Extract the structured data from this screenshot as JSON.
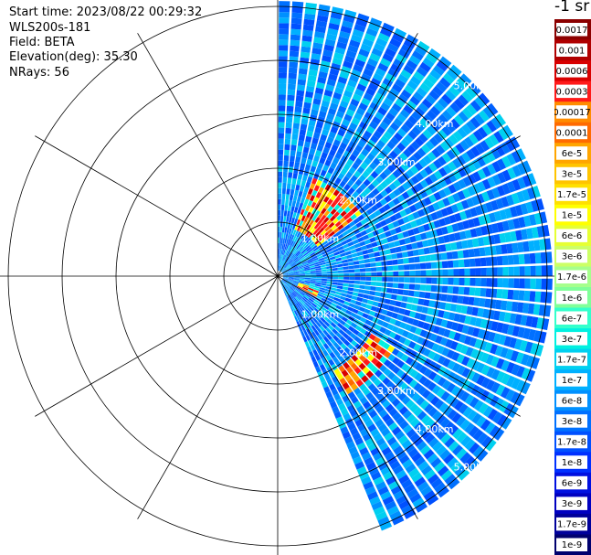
{
  "header": {
    "start_time": "Start time: 2023/08/22 00:29:32",
    "instrument": "WLS200s-181",
    "field": "Field: BETA",
    "elevation": "Elevation(deg): 35.30",
    "nrays": "NRays: 56"
  },
  "colorbar": {
    "units_label": "-1 sr",
    "labels": [
      "0.0017",
      "0.001",
      "0.0006",
      "0.0003",
      "0.00017",
      "0.0001",
      "6e-5",
      "3e-5",
      "1.7e-5",
      "1e-5",
      "6e-6",
      "3e-6",
      "1.7e-6",
      "1e-6",
      "6e-7",
      "3e-7",
      "1.7e-7",
      "1e-7",
      "6e-8",
      "3e-8",
      "1.7e-8",
      "1e-8",
      "6e-9",
      "3e-9",
      "1.7e-9",
      "1e-9"
    ],
    "colors": [
      "#8b0000",
      "#b00000",
      "#d80000",
      "#ff1a1a",
      "#ff8c00",
      "#ff6a00",
      "#ffa500",
      "#ffc400",
      "#ffe000",
      "#ffff00",
      "#e6ff33",
      "#ccff66",
      "#a6ff8c",
      "#80ff99",
      "#33ffcc",
      "#00f0e0",
      "#00d0f0",
      "#00b0ff",
      "#0090ff",
      "#0070ff",
      "#0050ff",
      "#0030ff",
      "#0010e0",
      "#0000c0",
      "#00009a",
      "#00006e"
    ]
  },
  "chart_data": {
    "type": "heatmap",
    "projection": "polar PPI scan",
    "field": "BETA",
    "range_unit": "km",
    "range_rings_km": [
      1,
      2,
      3,
      4,
      5
    ],
    "range_labels": [
      "1.00km",
      "2.00km",
      "3.00km",
      "4.00km",
      "5.00km"
    ],
    "max_range_km": 5.1,
    "azimuth_spokes_deg": [
      0,
      30,
      60,
      90,
      120,
      150,
      180,
      210,
      240,
      270,
      300,
      330
    ],
    "sector_azimuth_deg": [
      0,
      158
    ],
    "n_rays": 56,
    "background_level": "1e-8 to 1.7e-8",
    "features": [
      {
        "azimuth_deg": [
          20,
          55
        ],
        "range_km": [
          0.9,
          1.9
        ],
        "level": "1e-5 to 0.0003"
      },
      {
        "azimuth_deg": [
          108,
          118
        ],
        "range_km": [
          0.4,
          0.8
        ],
        "level": "6e-6 to 0.0003"
      },
      {
        "azimuth_deg": [
          120,
          150
        ],
        "range_km": [
          2.0,
          2.6
        ],
        "level": "1e-5 to 0.0003"
      }
    ]
  }
}
